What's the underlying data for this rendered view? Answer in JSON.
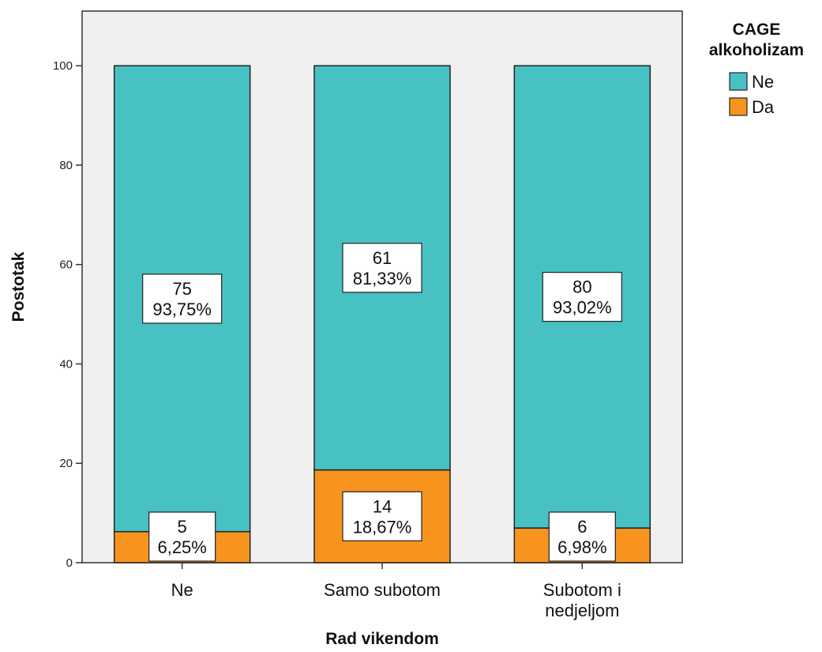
{
  "chart_data": {
    "type": "bar",
    "stacked": true,
    "categories": [
      "Ne",
      "Samo subotom",
      "Subotom i nedjeljom"
    ],
    "category_lines": [
      [
        "Ne"
      ],
      [
        "Samo subotom"
      ],
      [
        "Subotom i",
        "nedjeljom"
      ]
    ],
    "series": [
      {
        "name": "Da",
        "color": "#F7941E",
        "values": [
          6.25,
          18.67,
          6.98
        ],
        "counts": [
          "5",
          "14",
          "6"
        ],
        "percent_labels": [
          "6,25%",
          "18,67%",
          "6,98%"
        ]
      },
      {
        "name": "Ne",
        "color": "#47C1C4",
        "values": [
          93.75,
          81.33,
          93.02
        ],
        "counts": [
          "75",
          "61",
          "80"
        ],
        "percent_labels": [
          "93,75%",
          "81,33%",
          "93,02%"
        ]
      }
    ],
    "xlabel": "Rad vikendom",
    "ylabel": "Postotak",
    "ylim": [
      0,
      111
    ],
    "yticks": [
      0,
      20,
      40,
      60,
      80,
      100
    ],
    "ytick_labels": [
      "0",
      "20",
      "40",
      "60",
      "80",
      "100"
    ],
    "legend": {
      "title_lines": [
        "CAGE",
        "alkoholizam"
      ],
      "placement": "right",
      "entries": [
        "Ne",
        "Da"
      ]
    },
    "plot_background": "#F0F0F0",
    "grid": false
  }
}
